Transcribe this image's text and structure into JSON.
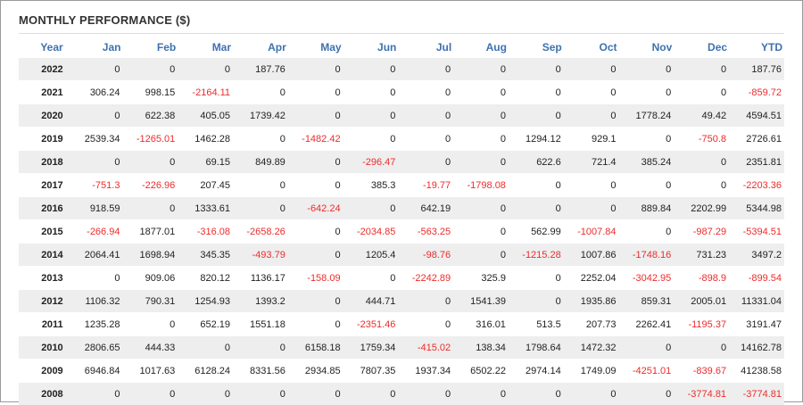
{
  "title": "MONTHLY PERFORMANCE ($)",
  "colors": {
    "header": "#3d72b0",
    "negative": "#ee2b2b",
    "stripe": "#eeeeee"
  },
  "columns": [
    "Year",
    "Jan",
    "Feb",
    "Mar",
    "Apr",
    "May",
    "Jun",
    "Jul",
    "Aug",
    "Sep",
    "Oct",
    "Nov",
    "Dec",
    "YTD"
  ],
  "rows": [
    [
      "2022",
      "0",
      "0",
      "0",
      "187.76",
      "0",
      "0",
      "0",
      "0",
      "0",
      "0",
      "0",
      "0",
      "187.76"
    ],
    [
      "2021",
      "306.24",
      "998.15",
      "-2164.11",
      "0",
      "0",
      "0",
      "0",
      "0",
      "0",
      "0",
      "0",
      "0",
      "-859.72"
    ],
    [
      "2020",
      "0",
      "622.38",
      "405.05",
      "1739.42",
      "0",
      "0",
      "0",
      "0",
      "0",
      "0",
      "1778.24",
      "49.42",
      "4594.51"
    ],
    [
      "2019",
      "2539.34",
      "-1265.01",
      "1462.28",
      "0",
      "-1482.42",
      "0",
      "0",
      "0",
      "1294.12",
      "929.1",
      "0",
      "-750.8",
      "2726.61"
    ],
    [
      "2018",
      "0",
      "0",
      "69.15",
      "849.89",
      "0",
      "-296.47",
      "0",
      "0",
      "622.6",
      "721.4",
      "385.24",
      "0",
      "2351.81"
    ],
    [
      "2017",
      "-751.3",
      "-226.96",
      "207.45",
      "0",
      "0",
      "385.3",
      "-19.77",
      "-1798.08",
      "0",
      "0",
      "0",
      "0",
      "-2203.36"
    ],
    [
      "2016",
      "918.59",
      "0",
      "1333.61",
      "0",
      "-642.24",
      "0",
      "642.19",
      "0",
      "0",
      "0",
      "889.84",
      "2202.99",
      "5344.98"
    ],
    [
      "2015",
      "-266.94",
      "1877.01",
      "-316.08",
      "-2658.26",
      "0",
      "-2034.85",
      "-563.25",
      "0",
      "562.99",
      "-1007.84",
      "0",
      "-987.29",
      "-5394.51"
    ],
    [
      "2014",
      "2064.41",
      "1698.94",
      "345.35",
      "-493.79",
      "0",
      "1205.4",
      "-98.76",
      "0",
      "-1215.28",
      "1007.86",
      "-1748.16",
      "731.23",
      "3497.2"
    ],
    [
      "2013",
      "0",
      "909.06",
      "820.12",
      "1136.17",
      "-158.09",
      "0",
      "-2242.89",
      "325.9",
      "0",
      "2252.04",
      "-3042.95",
      "-898.9",
      "-899.54"
    ],
    [
      "2012",
      "1106.32",
      "790.31",
      "1254.93",
      "1393.2",
      "0",
      "444.71",
      "0",
      "1541.39",
      "0",
      "1935.86",
      "859.31",
      "2005.01",
      "11331.04"
    ],
    [
      "2011",
      "1235.28",
      "0",
      "652.19",
      "1551.18",
      "0",
      "-2351.46",
      "0",
      "316.01",
      "513.5",
      "207.73",
      "2262.41",
      "-1195.37",
      "3191.47"
    ],
    [
      "2010",
      "2806.65",
      "444.33",
      "0",
      "0",
      "6158.18",
      "1759.34",
      "-415.02",
      "138.34",
      "1798.64",
      "1472.32",
      "0",
      "0",
      "14162.78"
    ],
    [
      "2009",
      "6946.84",
      "1017.63",
      "6128.24",
      "8331.56",
      "2934.85",
      "7807.35",
      "1937.34",
      "6502.22",
      "2974.14",
      "1749.09",
      "-4251.01",
      "-839.67",
      "41238.58"
    ],
    [
      "2008",
      "0",
      "0",
      "0",
      "0",
      "0",
      "0",
      "0",
      "0",
      "0",
      "0",
      "0",
      "-3774.81",
      "-3774.81"
    ]
  ]
}
